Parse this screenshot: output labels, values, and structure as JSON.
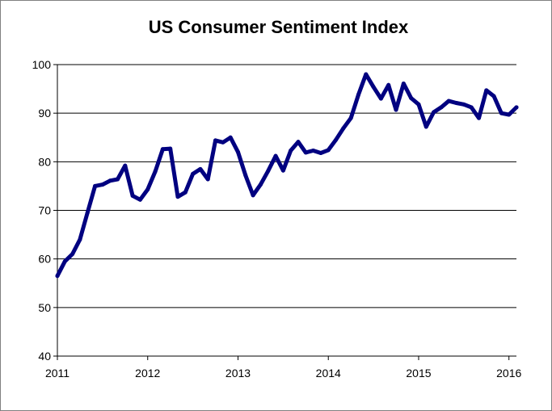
{
  "chart_data": {
    "type": "line",
    "title": "US Consumer Sentiment Index",
    "xlabel": "",
    "ylabel": "",
    "xlim": [
      2011,
      2016.083
    ],
    "ylim": [
      40,
      100
    ],
    "grid": true,
    "legend": "none",
    "x_ticks": [
      "2011",
      "2012",
      "2013",
      "2014",
      "2015",
      "2016"
    ],
    "y_ticks": [
      "40",
      "50",
      "60",
      "70",
      "80",
      "90",
      "100"
    ],
    "line_color": "#000080",
    "series": [
      {
        "name": "Consumer Sentiment",
        "x": [
          2011.0,
          2011.0833,
          2011.1667,
          2011.25,
          2011.3333,
          2011.4167,
          2011.5,
          2011.5833,
          2011.6667,
          2011.75,
          2011.8333,
          2011.9167,
          2012.0,
          2012.0833,
          2012.1667,
          2012.25,
          2012.3333,
          2012.4167,
          2012.5,
          2012.5833,
          2012.6667,
          2012.75,
          2012.8333,
          2012.9167,
          2013.0,
          2013.0833,
          2013.1667,
          2013.25,
          2013.3333,
          2013.4167,
          2013.5,
          2013.5833,
          2013.6667,
          2013.75,
          2013.8333,
          2013.9167,
          2014.0,
          2014.0833,
          2014.1667,
          2014.25,
          2014.3333,
          2014.4167,
          2014.5,
          2014.5833,
          2014.6667,
          2014.75,
          2014.8333,
          2014.9167,
          2015.0,
          2015.0833,
          2015.1667,
          2015.25,
          2015.3333,
          2015.4167,
          2015.5,
          2015.5833,
          2015.6667,
          2015.75,
          2015.8333,
          2015.9167,
          2016.0,
          2016.0833
        ],
        "values": [
          56.5,
          59.5,
          61.0,
          64.0,
          69.5,
          75.0,
          75.3,
          76.1,
          76.4,
          79.2,
          73.0,
          72.2,
          74.3,
          78.0,
          82.6,
          82.7,
          72.8,
          73.7,
          77.5,
          78.5,
          76.4,
          84.4,
          84.0,
          85.0,
          82.0,
          77.2,
          73.1,
          75.3,
          78.1,
          81.2,
          78.2,
          82.3,
          84.1,
          81.9,
          82.3,
          81.8,
          82.4,
          84.5,
          86.9,
          89.0,
          93.8,
          98.0,
          95.4,
          93.0,
          95.8,
          90.7,
          96.1,
          93.1,
          91.8,
          87.2,
          90.2,
          91.2,
          92.5,
          92.1,
          91.8,
          91.2,
          89.0,
          94.7,
          93.5,
          90.0,
          89.7,
          91.2
        ]
      }
    ]
  }
}
